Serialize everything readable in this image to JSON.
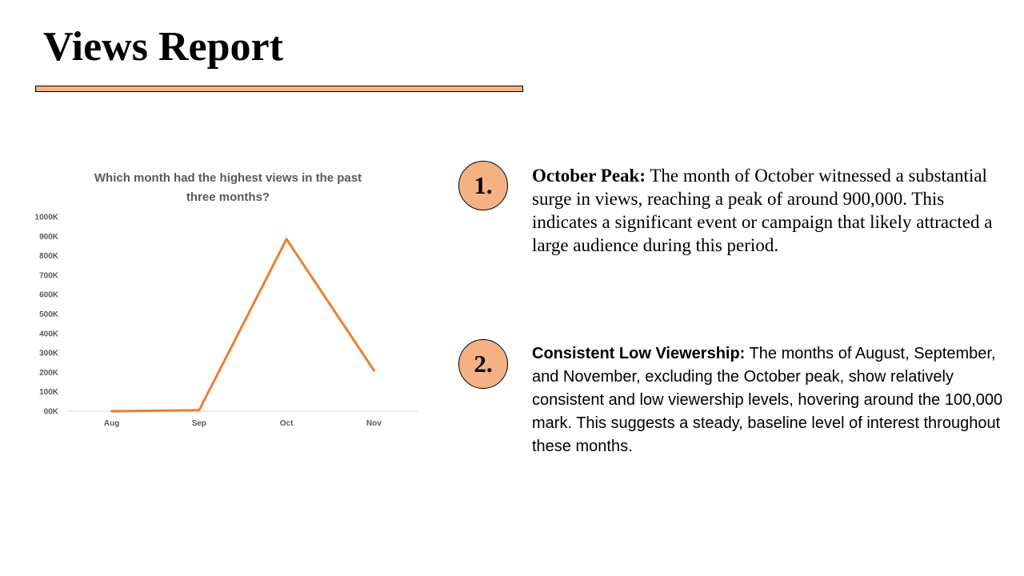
{
  "slide": {
    "title": "Views Report"
  },
  "chart_data": {
    "type": "line",
    "title_lines": [
      "Which month had the highest views in the past",
      "three months?"
    ],
    "categories": [
      "Aug",
      "Sep",
      "Oct",
      "Nov"
    ],
    "series": [
      {
        "values": [
          0,
          5000,
          885000,
          210000
        ]
      }
    ],
    "ylim": [
      0,
      1000000
    ],
    "y_ticks": [
      0,
      100000,
      200000,
      300000,
      400000,
      500000,
      600000,
      700000,
      800000,
      900000,
      1000000
    ],
    "y_tick_labels": [
      "00K",
      "100K",
      "200K",
      "300K",
      "400K",
      "500K",
      "600K",
      "700K",
      "800K",
      "900K",
      "1000K"
    ],
    "line_color": "#ed7d31",
    "grid": false,
    "xlabel": "",
    "ylabel": ""
  },
  "points": [
    {
      "number": "1.",
      "heading": "October Peak:",
      "text": "The month of October witnessed a substantial surge in views, reaching a peak of around 900,000. This indicates a significant event or campaign that likely attracted a large audience during this period."
    },
    {
      "number": "2.",
      "heading": "Consistent Low Viewership:",
      "text": "The months of August, September, and November, excluding the October peak, show relatively consistent and low viewership levels, hovering around the 100,000 mark. This suggests a steady, baseline level of interest throughout these months."
    }
  ],
  "colors": {
    "accent": "#f4b183",
    "line": "#ed7d31",
    "chart_text": "#595959"
  }
}
